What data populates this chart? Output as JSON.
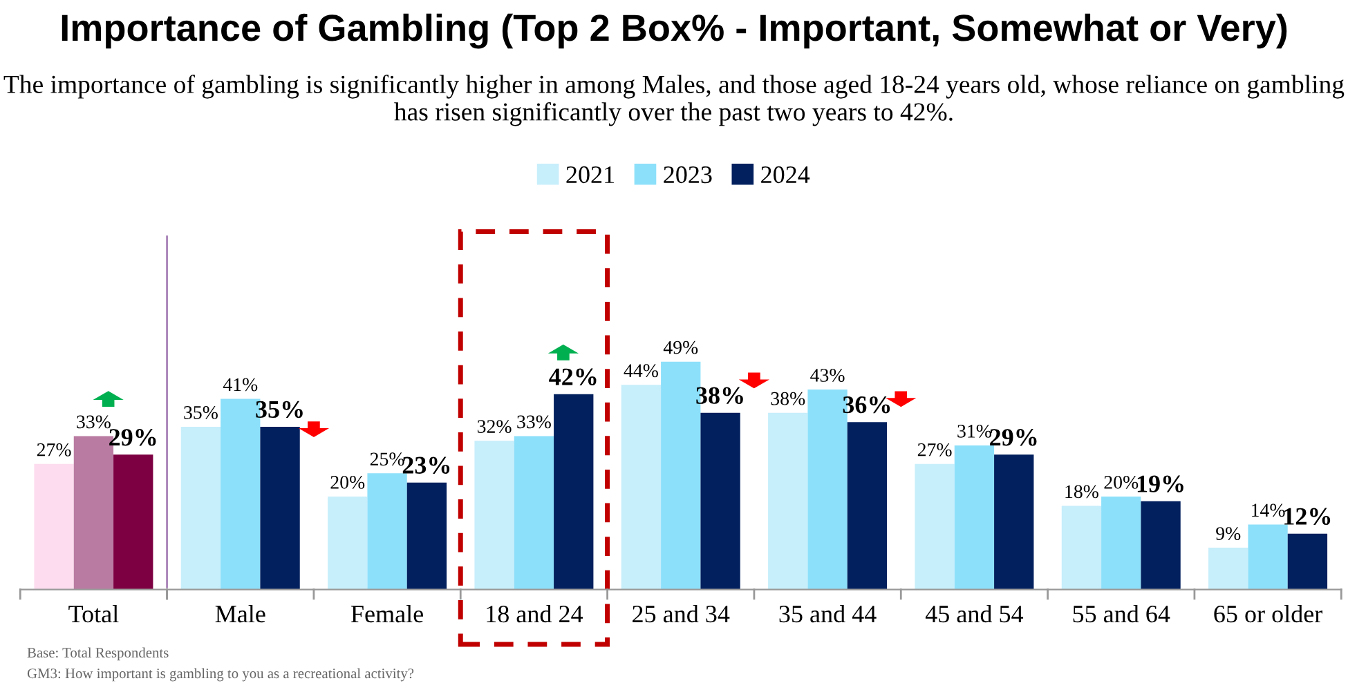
{
  "chart_data": [
    {
      "type": "bar",
      "title": "Importance of Gambling (Top 2 Box% - Important, Somewhat or Very)",
      "subtitle": "The importance of gambling is significantly higher in among Males, and those aged 18-24 years old, whose reliance on gambling has risen significantly over the past two years to 42%.",
      "categories": [
        "Total"
      ],
      "series": [
        {
          "color": "#fddcef",
          "values": [
            27
          ],
          "value_labels": [
            "27%"
          ]
        },
        {
          "color": "#b97ba1",
          "values": [
            33
          ],
          "value_labels": [
            "33%"
          ]
        },
        {
          "color": "#7d0043",
          "values": [
            29
          ],
          "value_labels": [
            "29%"
          ]
        }
      ],
      "annotations": [
        "Base: Total Respondents",
        "GM3: How important is gambling to you as a recreational activity?"
      ]
    },
    {
      "type": "bar",
      "categories": [
        "Male",
        "Female",
        "18 and 24",
        "25 and 34",
        "35 and 44",
        "45 and 54",
        "55 and 64",
        "65 or older"
      ],
      "series": [
        {
          "name": "2021",
          "color": "#c7eefb",
          "values": [
            35,
            20,
            32,
            44,
            38,
            27,
            18,
            9
          ],
          "value_labels": [
            "35%",
            "20%",
            "32%",
            "44%",
            "38%",
            "27%",
            "18%",
            "9%"
          ]
        },
        {
          "name": "2023",
          "color": "#8de0fa",
          "values": [
            41,
            25,
            33,
            49,
            43,
            31,
            20,
            14
          ],
          "value_labels": [
            "41%",
            "25%",
            "33%",
            "49%",
            "43%",
            "31%",
            "20%",
            "14%"
          ]
        },
        {
          "name": "2024",
          "color": "#03205e",
          "values": [
            35,
            23,
            42,
            38,
            36,
            29,
            19,
            12
          ],
          "value_labels": [
            "35%",
            "23%",
            "42%",
            "38%",
            "36%",
            "29%",
            "19%",
            "12%"
          ]
        }
      ],
      "legend": "top"
    }
  ]
}
